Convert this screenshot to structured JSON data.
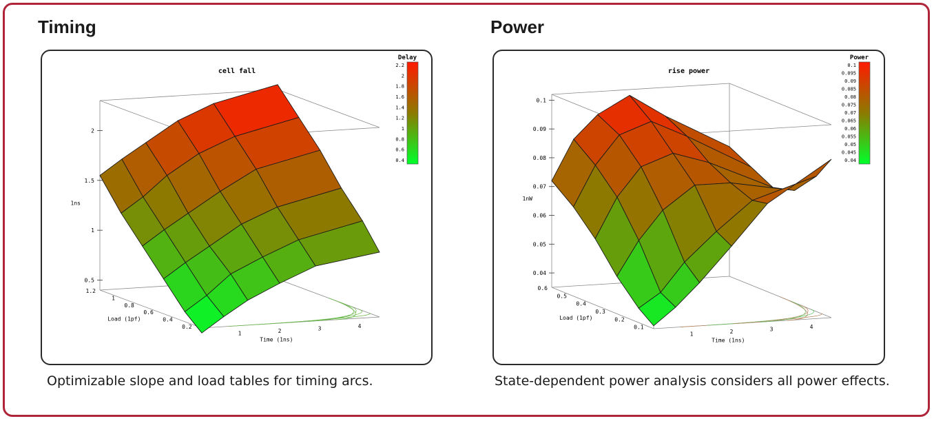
{
  "panels": [
    {
      "heading": "Timing",
      "caption": "Optimizable slope and load tables for timing arcs."
    },
    {
      "heading": "Power",
      "caption": "State-dependent power analysis considers all power effects."
    }
  ],
  "colors": {
    "border": "#b0243a",
    "high": "#ff1a00",
    "mid": "#8c7a00",
    "low": "#00ff2a"
  },
  "chart_data": [
    {
      "type": "surface3d",
      "title": "cell fall",
      "colorbar_label": "Delay",
      "colorbar_ticks": [
        "2.2",
        "2",
        "1.8",
        "1.6",
        "1.4",
        "1.2",
        "1",
        "0.8",
        "0.6",
        "0.4"
      ],
      "zlabel": "1ns",
      "zticks": [
        "2",
        "1.5",
        "1",
        "0.5"
      ],
      "ylabel": "Load (1pf)",
      "yticks": [
        "1.2",
        "1",
        "0.8",
        "0.6",
        "0.4",
        "0.2"
      ],
      "xlabel": "Time (1ns)",
      "xticks": [
        "1",
        "2",
        "3",
        "4"
      ],
      "zlim": [
        0.4,
        2.3
      ],
      "grid": {
        "x": [
          0.05,
          0.6,
          1.2,
          2.0,
          2.9,
          4.5
        ],
        "y": [
          0.05,
          0.25,
          0.5,
          0.75,
          1.0,
          1.25
        ],
        "z": [
          [
            0.35,
            0.5,
            0.65,
            0.8,
            0.95,
            1.05
          ],
          [
            0.5,
            0.65,
            0.85,
            1.0,
            1.15,
            1.3
          ],
          [
            0.75,
            0.9,
            1.05,
            1.25,
            1.4,
            1.55
          ],
          [
            1.0,
            1.15,
            1.3,
            1.5,
            1.7,
            1.85
          ],
          [
            1.25,
            1.4,
            1.6,
            1.8,
            1.95,
            2.1
          ],
          [
            1.55,
            1.7,
            1.85,
            2.05,
            2.2,
            2.35
          ]
        ]
      }
    },
    {
      "type": "surface3d",
      "title": "rise power",
      "colorbar_label": "Power",
      "colorbar_ticks": [
        "0.1",
        "0.095",
        "0.09",
        "0.085",
        "0.08",
        "0.075",
        "0.07",
        "0.065",
        "0.06",
        "0.055",
        "0.05",
        "0.045",
        "0.04"
      ],
      "zlabel": "1nW",
      "zticks": [
        "0.1",
        "0.09",
        "0.08",
        "0.07",
        "0.06",
        "0.05",
        "0.04"
      ],
      "ylabel": "Load (1pf)",
      "yticks": [
        "0.6",
        "0.5",
        "0.4",
        "0.3",
        "0.2",
        "0.1"
      ],
      "xlabel": "Time (1ns)",
      "xticks": [
        "1",
        "2",
        "3",
        "4"
      ],
      "zlim": [
        0.035,
        0.102
      ],
      "grid": {
        "x": [
          0.05,
          0.6,
          1.2,
          2.0,
          2.9,
          4.5
        ],
        "y": [
          0.03,
          0.12,
          0.25,
          0.38,
          0.51,
          0.64
        ],
        "z": [
          [
            0.036,
            0.042,
            0.05,
            0.062,
            0.076,
            0.09
          ],
          [
            0.04,
            0.045,
            0.055,
            0.065,
            0.075,
            0.082
          ],
          [
            0.048,
            0.06,
            0.07,
            0.078,
            0.078,
            0.074
          ],
          [
            0.058,
            0.072,
            0.082,
            0.086,
            0.082,
            0.072
          ],
          [
            0.066,
            0.08,
            0.09,
            0.094,
            0.088,
            0.076
          ],
          [
            0.072,
            0.086,
            0.094,
            0.1,
            0.092,
            0.08
          ]
        ]
      }
    }
  ]
}
